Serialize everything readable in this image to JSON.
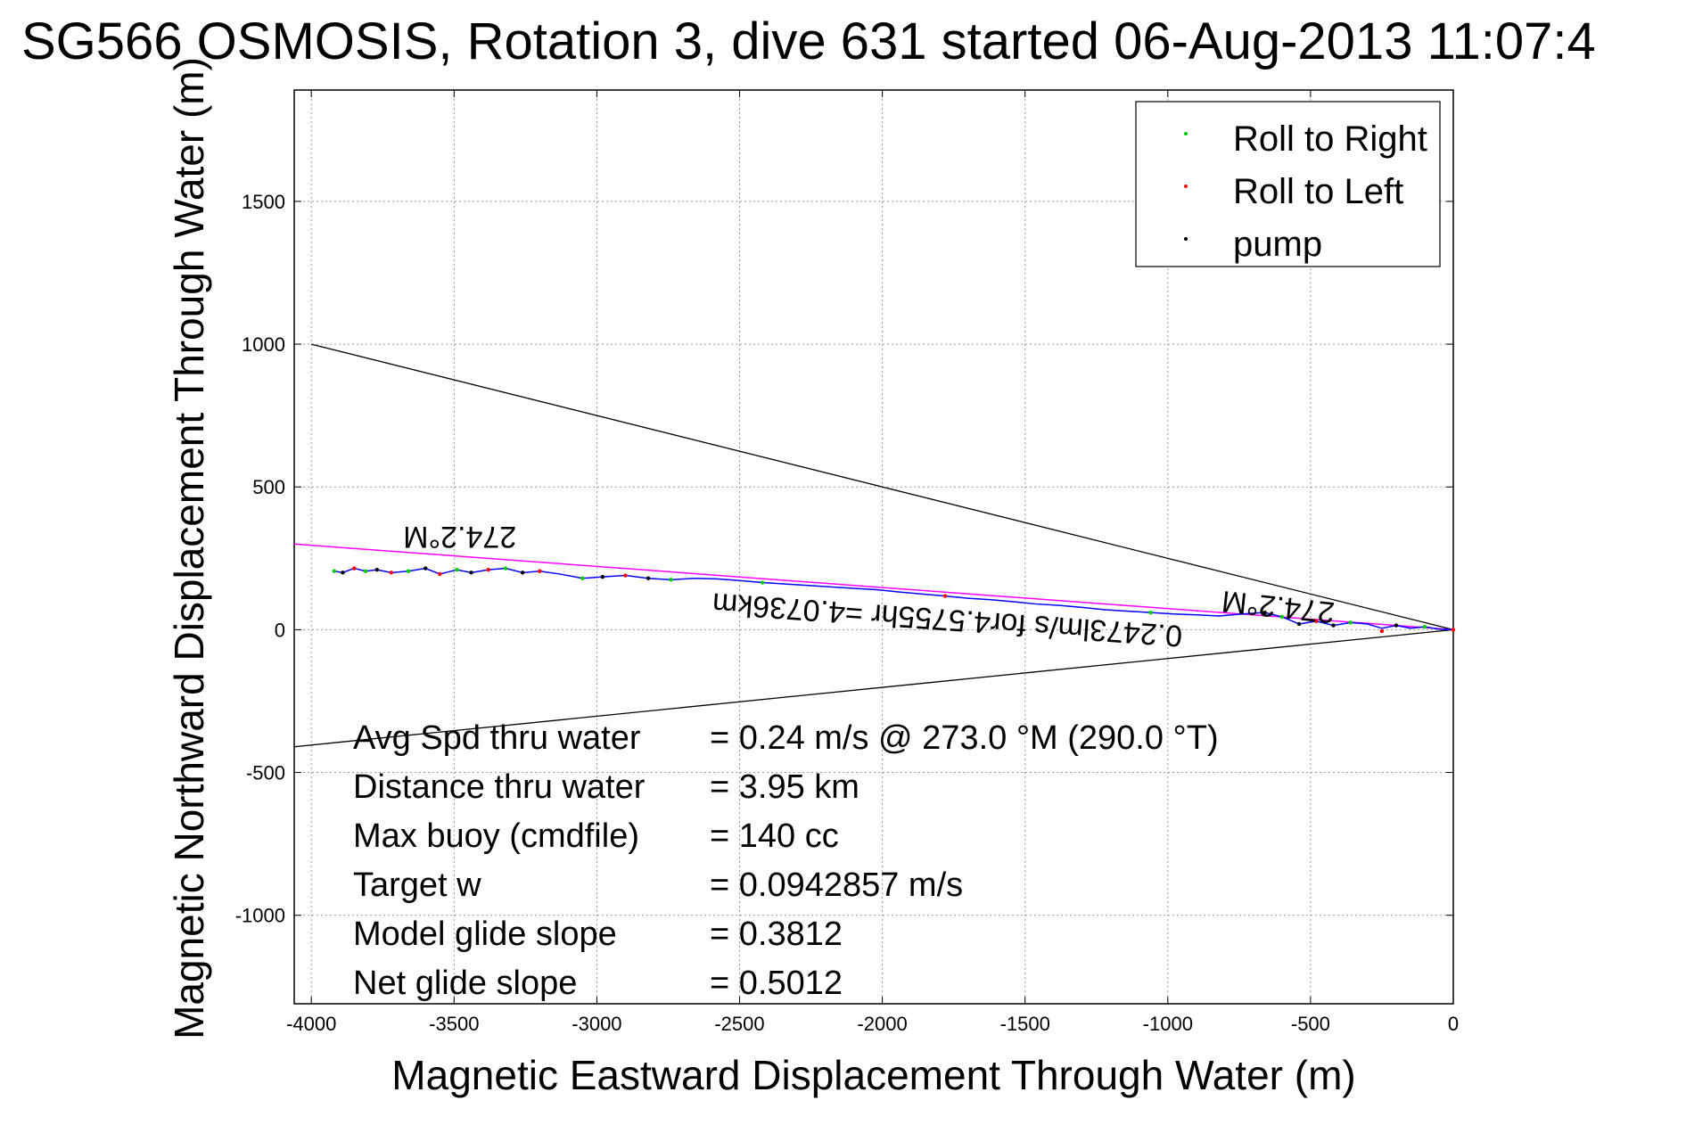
{
  "chart_data": {
    "type": "line",
    "title": "SG566 OSMOSIS, Rotation 3, dive 631 started 06-Aug-2013 11:07:4",
    "xlabel": "Magnetic Eastward Displacement Through Water (m)",
    "ylabel": "Magnetic Northward Displacement Through Water (m)",
    "xlim": [
      -4060,
      0
    ],
    "ylim": [
      -1310,
      1890
    ],
    "grid": true,
    "xticks": [
      -4000,
      -3500,
      -3000,
      -2500,
      -2000,
      -1500,
      -1000,
      -500,
      0
    ],
    "yticks": [
      -1000,
      -500,
      0,
      500,
      1000,
      1500
    ],
    "legend_position": "top-right",
    "legend": [
      {
        "label": "Roll to Right",
        "color": "#00cc00"
      },
      {
        "label": "Roll to Left",
        "color": "#ff0000"
      },
      {
        "label": "pump",
        "color": "#000000"
      }
    ],
    "track": {
      "color": "#0000ff",
      "x": [
        -3920,
        -3890,
        -3850,
        -3810,
        -3770,
        -3720,
        -3660,
        -3600,
        -3550,
        -3490,
        -3440,
        -3380,
        -3320,
        -3260,
        -3200,
        -3130,
        -3050,
        -2980,
        -2900,
        -2820,
        -2740,
        -2660,
        -2580,
        -2500,
        -2420,
        -2340,
        -2260,
        -2180,
        -2100,
        -2020,
        -1940,
        -1860,
        -1780,
        -1700,
        -1620,
        -1540,
        -1460,
        -1380,
        -1300,
        -1220,
        -1140,
        -1060,
        -980,
        -900,
        -820,
        -740,
        -660,
        -600,
        -540,
        -480,
        -420,
        -360,
        -300,
        -250,
        -200,
        -150,
        -100,
        -50,
        0
      ],
      "y": [
        205,
        200,
        215,
        205,
        210,
        200,
        205,
        215,
        195,
        210,
        200,
        210,
        215,
        200,
        205,
        195,
        180,
        185,
        190,
        180,
        175,
        180,
        178,
        172,
        165,
        160,
        155,
        150,
        145,
        140,
        132,
        125,
        118,
        110,
        105,
        98,
        90,
        85,
        78,
        70,
        65,
        60,
        55,
        52,
        48,
        55,
        60,
        45,
        20,
        30,
        15,
        25,
        20,
        5,
        15,
        5,
        10,
        2,
        0
      ]
    },
    "roll_right_points": {
      "color": "#00cc00",
      "x": [
        -3920,
        -3810,
        -3660,
        -3490,
        -3320,
        -3050,
        -2740,
        -2420,
        -1060,
        -600,
        -360,
        -100
      ],
      "y": [
        205,
        205,
        205,
        210,
        215,
        180,
        175,
        165,
        60,
        45,
        25,
        10
      ]
    },
    "roll_left_points": {
      "color": "#ff0000",
      "x": [
        -3850,
        -3720,
        -3550,
        -3380,
        -3200,
        -2900,
        -1780,
        -480,
        -250,
        0
      ],
      "y": [
        215,
        200,
        195,
        210,
        205,
        190,
        118,
        30,
        -5,
        0
      ]
    },
    "pump_points": {
      "color": "#000000",
      "x": [
        -3890,
        -3770,
        -3600,
        -3440,
        -3260,
        -2980,
        -2820,
        -660,
        -540,
        -420,
        -200
      ],
      "y": [
        200,
        210,
        215,
        200,
        200,
        185,
        180,
        60,
        20,
        15,
        15
      ]
    },
    "fit_line": {
      "color": "#ff00ff",
      "x": [
        -4060,
        0
      ],
      "y": [
        300,
        0
      ]
    },
    "cone_lines": [
      {
        "color": "#000000",
        "x": [
          -4000,
          0
        ],
        "y": [
          1000,
          0
        ]
      },
      {
        "color": "#000000",
        "x": [
          -4060,
          0
        ],
        "y": [
          -410,
          0
        ]
      }
    ],
    "annotations": [
      {
        "text": "274.2°M",
        "x": -3480,
        "y": 360,
        "rotate": 180
      },
      {
        "text": "274.2°M",
        "x": -610,
        "y": 115,
        "rotate": 186
      },
      {
        "text": "0.2473lm/s for4.5755hr =4.0736km",
        "x": -1770,
        "y": 70,
        "rotate": 184
      }
    ],
    "stats": [
      {
        "label": "Avg Spd thru water",
        "value": "=  0.24 m/s @ 273.0 °M (290.0 °T)"
      },
      {
        "label": "Distance thru water",
        "value": "=  3.95 km"
      },
      {
        "label": "Max buoy (cmdfile)",
        "value": "= 140 cc"
      },
      {
        "label": "Target w",
        "value": "= 0.0942857 m/s"
      },
      {
        "label": "Model glide slope",
        "value": "= 0.3812"
      },
      {
        "label": "Net glide slope",
        "value": "= 0.5012"
      }
    ]
  }
}
